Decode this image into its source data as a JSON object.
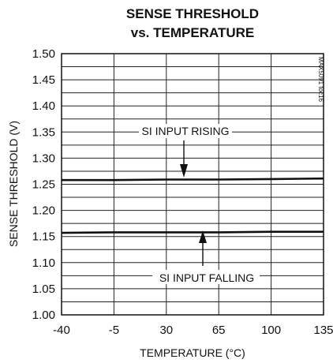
{
  "chart_data": {
    "type": "line",
    "title_lines": [
      "SENSE THRESHOLD",
      "vs. TEMPERATURE"
    ],
    "xlabel": "TEMPERATURE (°C)",
    "ylabel": "SENSE THRESHOLD (V)",
    "xlim": [
      -40,
      135
    ],
    "ylim": [
      1.0,
      1.5
    ],
    "x_ticks": [
      "-40",
      "-5",
      "30",
      "65",
      "100",
      "135"
    ],
    "y_ticks": [
      "1.50",
      "1.45",
      "1.40",
      "1.35",
      "1.30",
      "1.25",
      "1.20",
      "1.15",
      "1.10",
      "1.05",
      "1.00"
    ],
    "grid": true,
    "series": [
      {
        "name": "SI INPUT RISING",
        "x": [
          -40,
          -5,
          30,
          65,
          100,
          135
        ],
        "y": [
          1.258,
          1.258,
          1.259,
          1.259,
          1.26,
          1.261
        ]
      },
      {
        "name": "SI INPUT FALLING",
        "x": [
          -40,
          -5,
          30,
          65,
          100,
          135
        ],
        "y": [
          1.157,
          1.158,
          1.158,
          1.158,
          1.159,
          1.159
        ]
      }
    ],
    "annotations": [
      "SI INPUT RISING",
      "SI INPUT FALLING"
    ],
    "figure_code": "MAX5091 toc16"
  }
}
